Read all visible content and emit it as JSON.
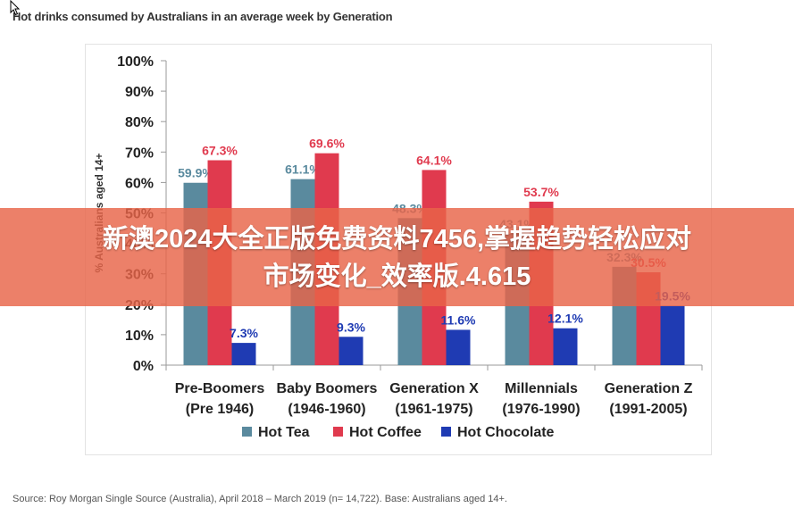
{
  "page": {
    "title": "Hot drinks consumed by Australians in an average week by Generation",
    "source": "Source: Roy Morgan Single Source (Australia), April 2018 – March 2019 (n= 14,722). Base: Australians aged 14+."
  },
  "overlay": {
    "banner_line1": "新澳2024大全正版免费资料7456,掌握趋势轻松应对",
    "banner_line2": "市场变化_效率版.4.615"
  },
  "chart_data": {
    "type": "bar",
    "title": "Hot drinks consumed by Australians in an average week by Generation",
    "ylabel": "% Australians aged 14+",
    "xlabel": "",
    "ylim": [
      0,
      100
    ],
    "yticks": [
      "0%",
      "10%",
      "20%",
      "30%",
      "40%",
      "50%",
      "60%",
      "70%",
      "80%",
      "90%",
      "100%"
    ],
    "categories": [
      [
        "Pre-Boomers",
        "(Pre 1946)"
      ],
      [
        "Baby Boomers",
        "(1946-1960)"
      ],
      [
        "Generation X",
        "(1961-1975)"
      ],
      [
        "Millennials",
        "(1976-1990)"
      ],
      [
        "Generation Z",
        "(1991-2005)"
      ]
    ],
    "series": [
      {
        "name": "Hot Tea",
        "color": "#5A8A9E",
        "values": [
          59.9,
          61.1,
          48.3,
          43.1,
          32.3
        ],
        "labels": [
          "59.9%",
          "61.1%",
          "48.3%",
          "43.1%",
          "32.3%"
        ]
      },
      {
        "name": "Hot Coffee",
        "color": "#E03A4E",
        "values": [
          67.3,
          69.6,
          64.1,
          53.7,
          30.5
        ],
        "labels": [
          "67.3%",
          "69.6%",
          "64.1%",
          "53.7%",
          "30.5%"
        ]
      },
      {
        "name": "Hot Chocolate",
        "color": "#1F3BB3",
        "values": [
          7.3,
          9.3,
          11.6,
          12.1,
          19.5
        ],
        "labels": [
          "7.3%",
          "9.3%",
          "11.6%",
          "12.1%",
          "19.5%"
        ]
      }
    ],
    "grid": false,
    "legend": "bottom"
  }
}
